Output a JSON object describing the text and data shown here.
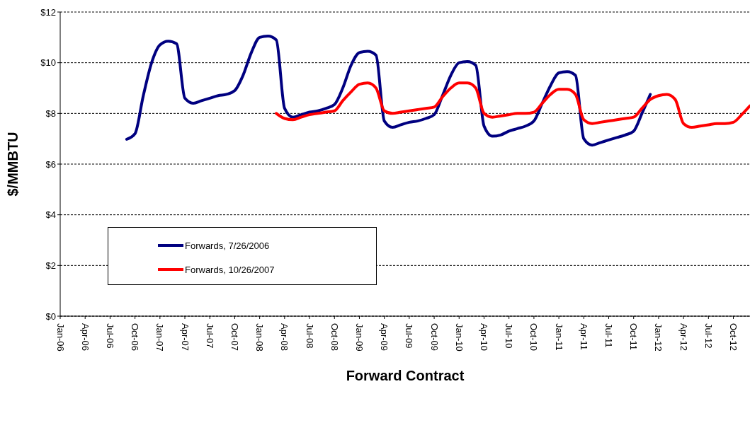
{
  "chart_data": {
    "type": "line",
    "xlabel": "Forward Contract",
    "ylabel": "$/MMBTU",
    "xlim": [
      "2006-01",
      "2012-12"
    ],
    "xticks": [
      {
        "value": "2006-01",
        "label": "Jan-06"
      },
      {
        "value": "2006-04",
        "label": "Apr-06"
      },
      {
        "value": "2006-07",
        "label": "Jul-06"
      },
      {
        "value": "2006-10",
        "label": "Oct-06"
      },
      {
        "value": "2007-01",
        "label": "Jan-07"
      },
      {
        "value": "2007-04",
        "label": "Apr-07"
      },
      {
        "value": "2007-07",
        "label": "Jul-07"
      },
      {
        "value": "2007-10",
        "label": "Oct-07"
      },
      {
        "value": "2008-01",
        "label": "Jan-08"
      },
      {
        "value": "2008-04",
        "label": "Apr-08"
      },
      {
        "value": "2008-07",
        "label": "Jul-08"
      },
      {
        "value": "2008-10",
        "label": "Oct-08"
      },
      {
        "value": "2009-01",
        "label": "Jan-09"
      },
      {
        "value": "2009-04",
        "label": "Apr-09"
      },
      {
        "value": "2009-07",
        "label": "Jul-09"
      },
      {
        "value": "2009-10",
        "label": "Oct-09"
      },
      {
        "value": "2010-01",
        "label": "Jan-10"
      },
      {
        "value": "2010-04",
        "label": "Apr-10"
      },
      {
        "value": "2010-07",
        "label": "Jul-10"
      },
      {
        "value": "2010-10",
        "label": "Oct-10"
      },
      {
        "value": "2011-01",
        "label": "Jan-11"
      },
      {
        "value": "2011-04",
        "label": "Apr-11"
      },
      {
        "value": "2011-07",
        "label": "Jul-11"
      },
      {
        "value": "2011-10",
        "label": "Oct-11"
      },
      {
        "value": "2012-01",
        "label": "Jan-12"
      },
      {
        "value": "2012-04",
        "label": "Apr-12"
      },
      {
        "value": "2012-07",
        "label": "Jul-12"
      },
      {
        "value": "2012-10",
        "label": "Oct-12"
      }
    ],
    "ylim": [
      0,
      12
    ],
    "yticks": [
      {
        "value": 0,
        "label": "$0"
      },
      {
        "value": 2,
        "label": "$2"
      },
      {
        "value": 4,
        "label": "$4"
      },
      {
        "value": 6,
        "label": "$6"
      },
      {
        "value": 8,
        "label": "$8"
      },
      {
        "value": 10,
        "label": "$10"
      },
      {
        "value": 12,
        "label": "$12"
      }
    ],
    "grid": "y",
    "legend": "center left",
    "line_style": "solid",
    "marker": "none",
    "series": [
      {
        "name": "Forwards, 7/26/2006",
        "color": "#000080",
        "x": [
          "2006-09",
          "2006-10",
          "2006-11",
          "2006-12",
          "2007-01",
          "2007-02",
          "2007-03",
          "2007-04",
          "2007-05",
          "2007-06",
          "2007-07",
          "2007-08",
          "2007-09",
          "2007-10",
          "2007-11",
          "2007-12",
          "2008-01",
          "2008-02",
          "2008-03",
          "2008-04",
          "2008-05",
          "2008-06",
          "2008-07",
          "2008-08",
          "2008-09",
          "2008-10",
          "2008-11",
          "2008-12",
          "2009-01",
          "2009-02",
          "2009-03",
          "2009-04",
          "2009-05",
          "2009-06",
          "2009-07",
          "2009-08",
          "2009-09",
          "2009-10",
          "2009-11",
          "2009-12",
          "2010-01",
          "2010-02",
          "2010-03",
          "2010-04",
          "2010-05",
          "2010-06",
          "2010-07",
          "2010-08",
          "2010-09",
          "2010-10",
          "2010-11",
          "2010-12",
          "2011-01",
          "2011-02",
          "2011-03",
          "2011-04",
          "2011-05",
          "2011-06",
          "2011-07",
          "2011-08",
          "2011-09",
          "2011-10",
          "2011-11",
          "2011-12"
        ],
        "values": [
          6.98,
          7.2,
          8.7,
          10.0,
          10.7,
          10.85,
          10.75,
          8.6,
          8.4,
          8.5,
          8.6,
          8.7,
          8.75,
          8.9,
          9.5,
          10.4,
          11.0,
          11.05,
          10.9,
          8.2,
          7.85,
          7.95,
          8.05,
          8.1,
          8.2,
          8.35,
          9.0,
          9.9,
          10.4,
          10.45,
          10.3,
          7.7,
          7.45,
          7.55,
          7.65,
          7.7,
          7.8,
          7.95,
          8.7,
          9.5,
          10.0,
          10.05,
          9.9,
          7.5,
          7.1,
          7.15,
          7.3,
          7.4,
          7.5,
          7.7,
          8.4,
          9.1,
          9.6,
          9.65,
          9.5,
          7.0,
          6.75,
          6.85,
          6.95,
          7.05,
          7.15,
          7.3,
          8.0,
          8.75
        ]
      },
      {
        "name": "Forwards, 10/26/2007",
        "color": "#ff0000",
        "x": [
          "2008-03",
          "2008-04",
          "2008-05",
          "2008-06",
          "2008-07",
          "2008-08",
          "2008-09",
          "2008-10",
          "2008-11",
          "2008-12",
          "2009-01",
          "2009-02",
          "2009-03",
          "2009-04",
          "2009-05",
          "2009-06",
          "2009-07",
          "2009-08",
          "2009-09",
          "2009-10",
          "2009-11",
          "2009-12",
          "2010-01",
          "2010-02",
          "2010-03",
          "2010-04",
          "2010-05",
          "2010-06",
          "2010-07",
          "2010-08",
          "2010-09",
          "2010-10",
          "2010-11",
          "2010-12",
          "2011-01",
          "2011-02",
          "2011-03",
          "2011-04",
          "2011-05",
          "2011-06",
          "2011-07",
          "2011-08",
          "2011-09",
          "2011-10",
          "2011-11",
          "2011-12",
          "2012-01",
          "2012-02",
          "2012-03",
          "2012-04",
          "2012-05",
          "2012-06",
          "2012-07",
          "2012-08",
          "2012-09",
          "2012-10",
          "2012-11",
          "2012-12"
        ],
        "values": [
          8.0,
          7.8,
          7.75,
          7.85,
          7.95,
          8.0,
          8.05,
          8.1,
          8.5,
          8.85,
          9.15,
          9.2,
          9.0,
          8.1,
          8.0,
          8.05,
          8.1,
          8.15,
          8.2,
          8.25,
          8.65,
          9.0,
          9.2,
          9.2,
          9.0,
          8.0,
          7.85,
          7.9,
          7.95,
          8.0,
          8.0,
          8.05,
          8.4,
          8.75,
          8.95,
          8.95,
          8.75,
          7.75,
          7.6,
          7.65,
          7.7,
          7.75,
          7.8,
          7.85,
          8.2,
          8.55,
          8.7,
          8.75,
          8.55,
          7.6,
          7.45,
          7.5,
          7.55,
          7.6,
          7.6,
          7.65,
          7.95,
          8.3
        ]
      }
    ]
  }
}
